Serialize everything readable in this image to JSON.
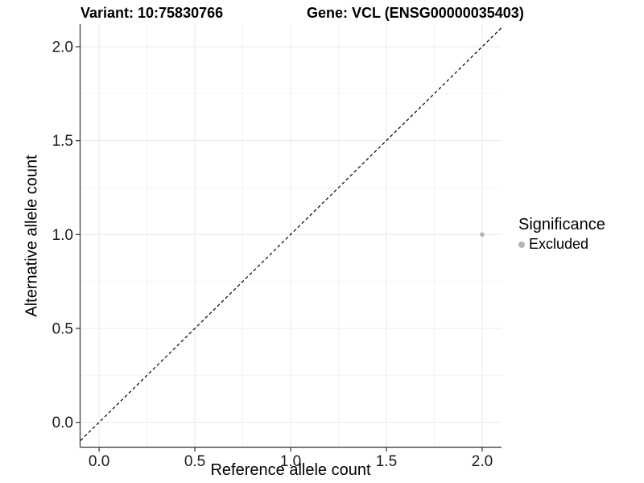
{
  "chart_data": {
    "type": "scatter",
    "titles": {
      "left": "Variant: 10:75830766",
      "right": "Gene: VCL (ENSG00000035403)"
    },
    "xlabel": "Reference allele count",
    "ylabel": "Alternative allele count",
    "x_tick_labels": [
      "0.0",
      "0.5",
      "1.0",
      "1.5",
      "2.0"
    ],
    "x_tick_values": [
      0,
      0.5,
      1,
      1.5,
      2
    ],
    "y_tick_labels": [
      "0.0",
      "0.5",
      "1.0",
      "1.5",
      "2.0"
    ],
    "y_tick_values": [
      0,
      0.5,
      1,
      1.5,
      2
    ],
    "xlim": [
      -0.097,
      2.101
    ],
    "ylim": [
      -0.13,
      2.12
    ],
    "minor_step": 0.25,
    "grid": true,
    "identity_line": {
      "slope": 1,
      "intercept": 0,
      "style": "dashed",
      "color": "#000000"
    },
    "series": [
      {
        "name": "Excluded",
        "color": "#b3b3b3",
        "points": [
          {
            "x": 2.0,
            "y": 1.0
          }
        ]
      }
    ],
    "legend": {
      "title": "Significance",
      "position": "right",
      "entries": [
        {
          "label": "Excluded",
          "color": "#b3b3b3"
        }
      ]
    },
    "colors": {
      "grid_major": "#e9e9e9",
      "grid_minor": "#f4f4f4",
      "axis_line": "#333333",
      "tick_mark": "#333333",
      "tick_text": "#1a1a1a",
      "background": "#ffffff"
    }
  }
}
